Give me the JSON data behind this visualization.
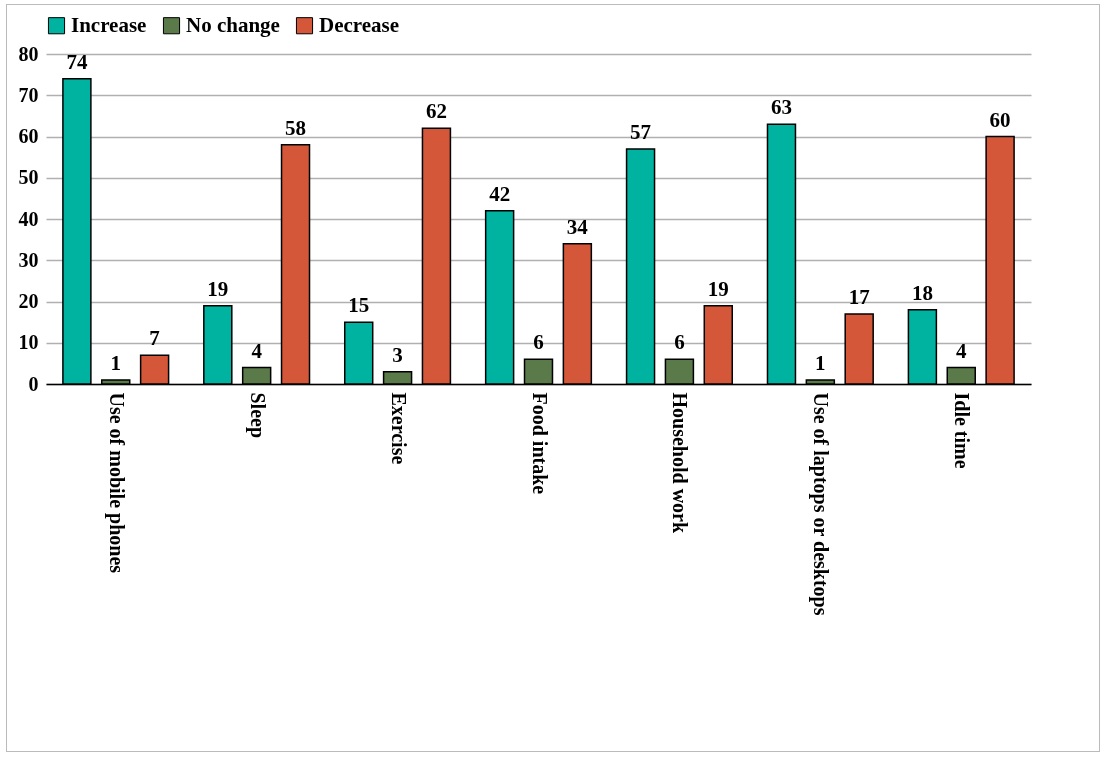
{
  "chart_data": {
    "type": "bar",
    "categories": [
      "Use of mobile phones",
      "Sleep",
      "Exercise",
      "Food intake",
      "Household work",
      "Use of laptops or desktops",
      "Idle time"
    ],
    "series": [
      {
        "name": "Increase",
        "color": "#00b3a0",
        "values": [
          74,
          19,
          15,
          42,
          57,
          63,
          18
        ]
      },
      {
        "name": "No change",
        "color": "#5b7a4a",
        "values": [
          1,
          4,
          3,
          6,
          6,
          1,
          4
        ]
      },
      {
        "name": "Decrease",
        "color": "#d4573a",
        "values": [
          7,
          58,
          62,
          34,
          19,
          17,
          60
        ]
      }
    ],
    "ylim": [
      0,
      80
    ],
    "yticks": [
      0,
      10,
      20,
      30,
      40,
      50,
      60,
      70,
      80
    ],
    "grid": "y",
    "legend": "top",
    "data_labels": true
  }
}
